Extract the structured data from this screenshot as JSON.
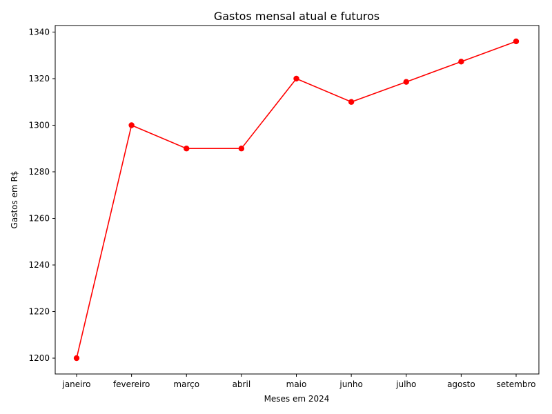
{
  "chart_data": {
    "type": "line",
    "title": "Gastos mensal atual e futuros",
    "xlabel": "Meses em 2024",
    "ylabel": "Gastos em R$",
    "categories": [
      "janeiro",
      "fevereiro",
      "março",
      "abril",
      "maio",
      "junho",
      "julho",
      "agosto",
      "setembro"
    ],
    "series": [
      {
        "name": "Gastos",
        "values": [
          1200,
          1300,
          1290,
          1290,
          1320,
          1310,
          1318.6,
          1327.3,
          1336
        ],
        "color": "#ff0000",
        "marker": "circle"
      }
    ],
    "ylim": [
      1193.2,
      1342.8
    ],
    "yticks": [
      1200,
      1220,
      1240,
      1260,
      1280,
      1300,
      1320,
      1340
    ],
    "grid": false,
    "legend": false
  }
}
